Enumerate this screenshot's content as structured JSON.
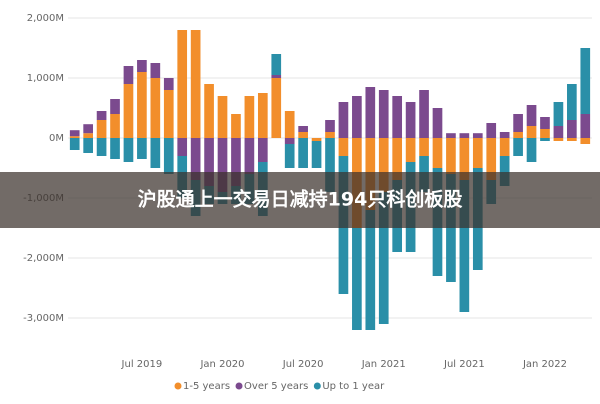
{
  "chart_data": {
    "type": "bar",
    "stacked": true,
    "annotation": "沪股通上一交易日减持194只科创板股",
    "categories": [
      null,
      null,
      null,
      null,
      null,
      "Jul 2019",
      null,
      null,
      null,
      null,
      null,
      "Jan 2020",
      null,
      null,
      null,
      null,
      null,
      "Jul 2020",
      null,
      null,
      null,
      null,
      null,
      "Jan 2021",
      null,
      null,
      null,
      null,
      null,
      "Jul 2021",
      null,
      null,
      null,
      null,
      null,
      "Jan 2022",
      null,
      null,
      null
    ],
    "series": [
      {
        "name": "1-5 years",
        "color": "#f28e2b",
        "values": [
          30,
          80,
          300,
          400,
          900,
          1100,
          1000,
          800,
          1800,
          1800,
          900,
          700,
          400,
          700,
          750,
          1000,
          450,
          100,
          -50,
          100,
          -300,
          -1500,
          -1200,
          -900,
          -700,
          -400,
          -300,
          -500,
          -600,
          -700,
          -500,
          -700,
          -300,
          100,
          200,
          150,
          -50,
          -50,
          -100
        ]
      },
      {
        "name": "Over 5 years",
        "color": "#7b4a8e",
        "values": [
          100,
          150,
          150,
          250,
          300,
          200,
          250,
          200,
          -300,
          -700,
          -800,
          -900,
          -800,
          -600,
          -400,
          50,
          -100,
          100,
          0,
          200,
          600,
          700,
          850,
          800,
          700,
          600,
          800,
          500,
          80,
          80,
          80,
          250,
          100,
          300,
          350,
          200,
          200,
          300,
          400
        ]
      },
      {
        "name": "Up to 1 year",
        "color": "#2a8fa8",
        "values": [
          -200,
          -250,
          -300,
          -350,
          -400,
          -350,
          -500,
          -600,
          -700,
          -600,
          -300,
          -200,
          -300,
          -500,
          -900,
          350,
          -400,
          -500,
          -450,
          -900,
          -2300,
          -1700,
          -2000,
          -2200,
          -1200,
          -1500,
          -600,
          -1800,
          -1800,
          -2200,
          -1700,
          -400,
          -500,
          -300,
          -400,
          -50,
          400,
          600,
          1100
        ]
      }
    ],
    "ylim": [
      -3500,
      2200
    ],
    "yticks": [
      {
        "value": 2000,
        "label": "2,000M"
      },
      {
        "value": 1000,
        "label": "1,000M"
      },
      {
        "value": 0,
        "label": "0M"
      },
      {
        "value": -1000,
        "label": "-1,000M"
      },
      {
        "value": -2000,
        "label": "-2,000M"
      },
      {
        "value": -3000,
        "label": "-3,000M"
      }
    ],
    "grid": true,
    "legend": "bottom"
  }
}
